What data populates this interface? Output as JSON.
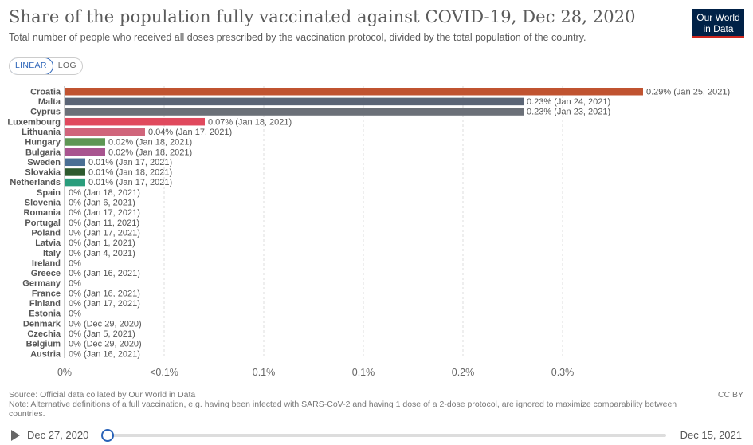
{
  "header": {
    "title": "Share of the population fully vaccinated against COVID-19, Dec 28, 2020",
    "subtitle": "Total number of people who received all doses prescribed by the vaccination protocol, divided by the total population of the country.",
    "logo_line1": "Our World",
    "logo_line2": "in Data"
  },
  "controls": {
    "linear_label": "LINEAR",
    "log_label": "LOG",
    "active": "LINEAR"
  },
  "chart_data": {
    "type": "bar",
    "orientation": "horizontal",
    "xlim": [
      0,
      0.3
    ],
    "tick_labels": [
      "0%",
      "<0.1%",
      "0.1%",
      "0.1%",
      "0.2%",
      "0.3%"
    ],
    "tick_values": [
      0,
      0.05,
      0.1,
      0.15,
      0.2,
      0.25
    ],
    "grid": "vertical dashed",
    "categories": [
      "Croatia",
      "Malta",
      "Cyprus",
      "Luxembourg",
      "Lithuania",
      "Hungary",
      "Bulgaria",
      "Sweden",
      "Slovakia",
      "Netherlands",
      "Spain",
      "Slovenia",
      "Romania",
      "Portugal",
      "Poland",
      "Latvia",
      "Italy",
      "Ireland",
      "Greece",
      "Germany",
      "France",
      "Finland",
      "Estonia",
      "Denmark",
      "Czechia",
      "Belgium",
      "Austria"
    ],
    "values": [
      0.29,
      0.23,
      0.23,
      0.07,
      0.04,
      0.02,
      0.02,
      0.01,
      0.01,
      0.01,
      0,
      0,
      0,
      0,
      0,
      0,
      0,
      0,
      0,
      0,
      0,
      0,
      0,
      0,
      0,
      0,
      0
    ],
    "value_labels": [
      "0.29% (Jan 25, 2021)",
      "0.23% (Jan 24, 2021)",
      "0.23% (Jan 23, 2021)",
      "0.07% (Jan 18, 2021)",
      "0.04% (Jan 17, 2021)",
      "0.02% (Jan 18, 2021)",
      "0.02% (Jan 18, 2021)",
      "0.01% (Jan 17, 2021)",
      "0.01% (Jan 18, 2021)",
      "0.01% (Jan 17, 2021)",
      "0% (Jan 18, 2021)",
      "0% (Jan 6, 2021)",
      "0% (Jan 17, 2021)",
      "0% (Jan 11, 2021)",
      "0% (Jan 17, 2021)",
      "0% (Jan 1, 2021)",
      "0% (Jan 4, 2021)",
      "0%",
      "0% (Jan 16, 2021)",
      "0%",
      "0% (Jan 16, 2021)",
      "0% (Jan 17, 2021)",
      "0%",
      "0% (Dec 29, 2020)",
      "0% (Jan 5, 2021)",
      "0% (Dec 29, 2020)",
      "0% (Jan 16, 2021)"
    ],
    "colors": [
      "#c05330",
      "#5b6576",
      "#6b7078",
      "#e0495d",
      "#d0657b",
      "#5e9654",
      "#a8548f",
      "#4a6f94",
      "#2d5a2e",
      "#2a9d7c",
      "#cccccc",
      "#cccccc",
      "#cccccc",
      "#cccccc",
      "#cccccc",
      "#cccccc",
      "#cccccc",
      "#cccccc",
      "#cccccc",
      "#cccccc",
      "#cccccc",
      "#cccccc",
      "#cccccc",
      "#cccccc",
      "#cccccc",
      "#cccccc",
      "#cccccc"
    ]
  },
  "footer": {
    "source": "Source: Official data collated by Our World in Data",
    "note": "Note: Alternative definitions of a full vaccination, e.g. having been infected with SARS-CoV-2 and having 1 dose of a 2-dose protocol, are ignored to maximize comparability between countries.",
    "license": "CC BY"
  },
  "timeline": {
    "start_label": "Dec 27, 2020",
    "end_label": "Dec 15, 2021"
  }
}
